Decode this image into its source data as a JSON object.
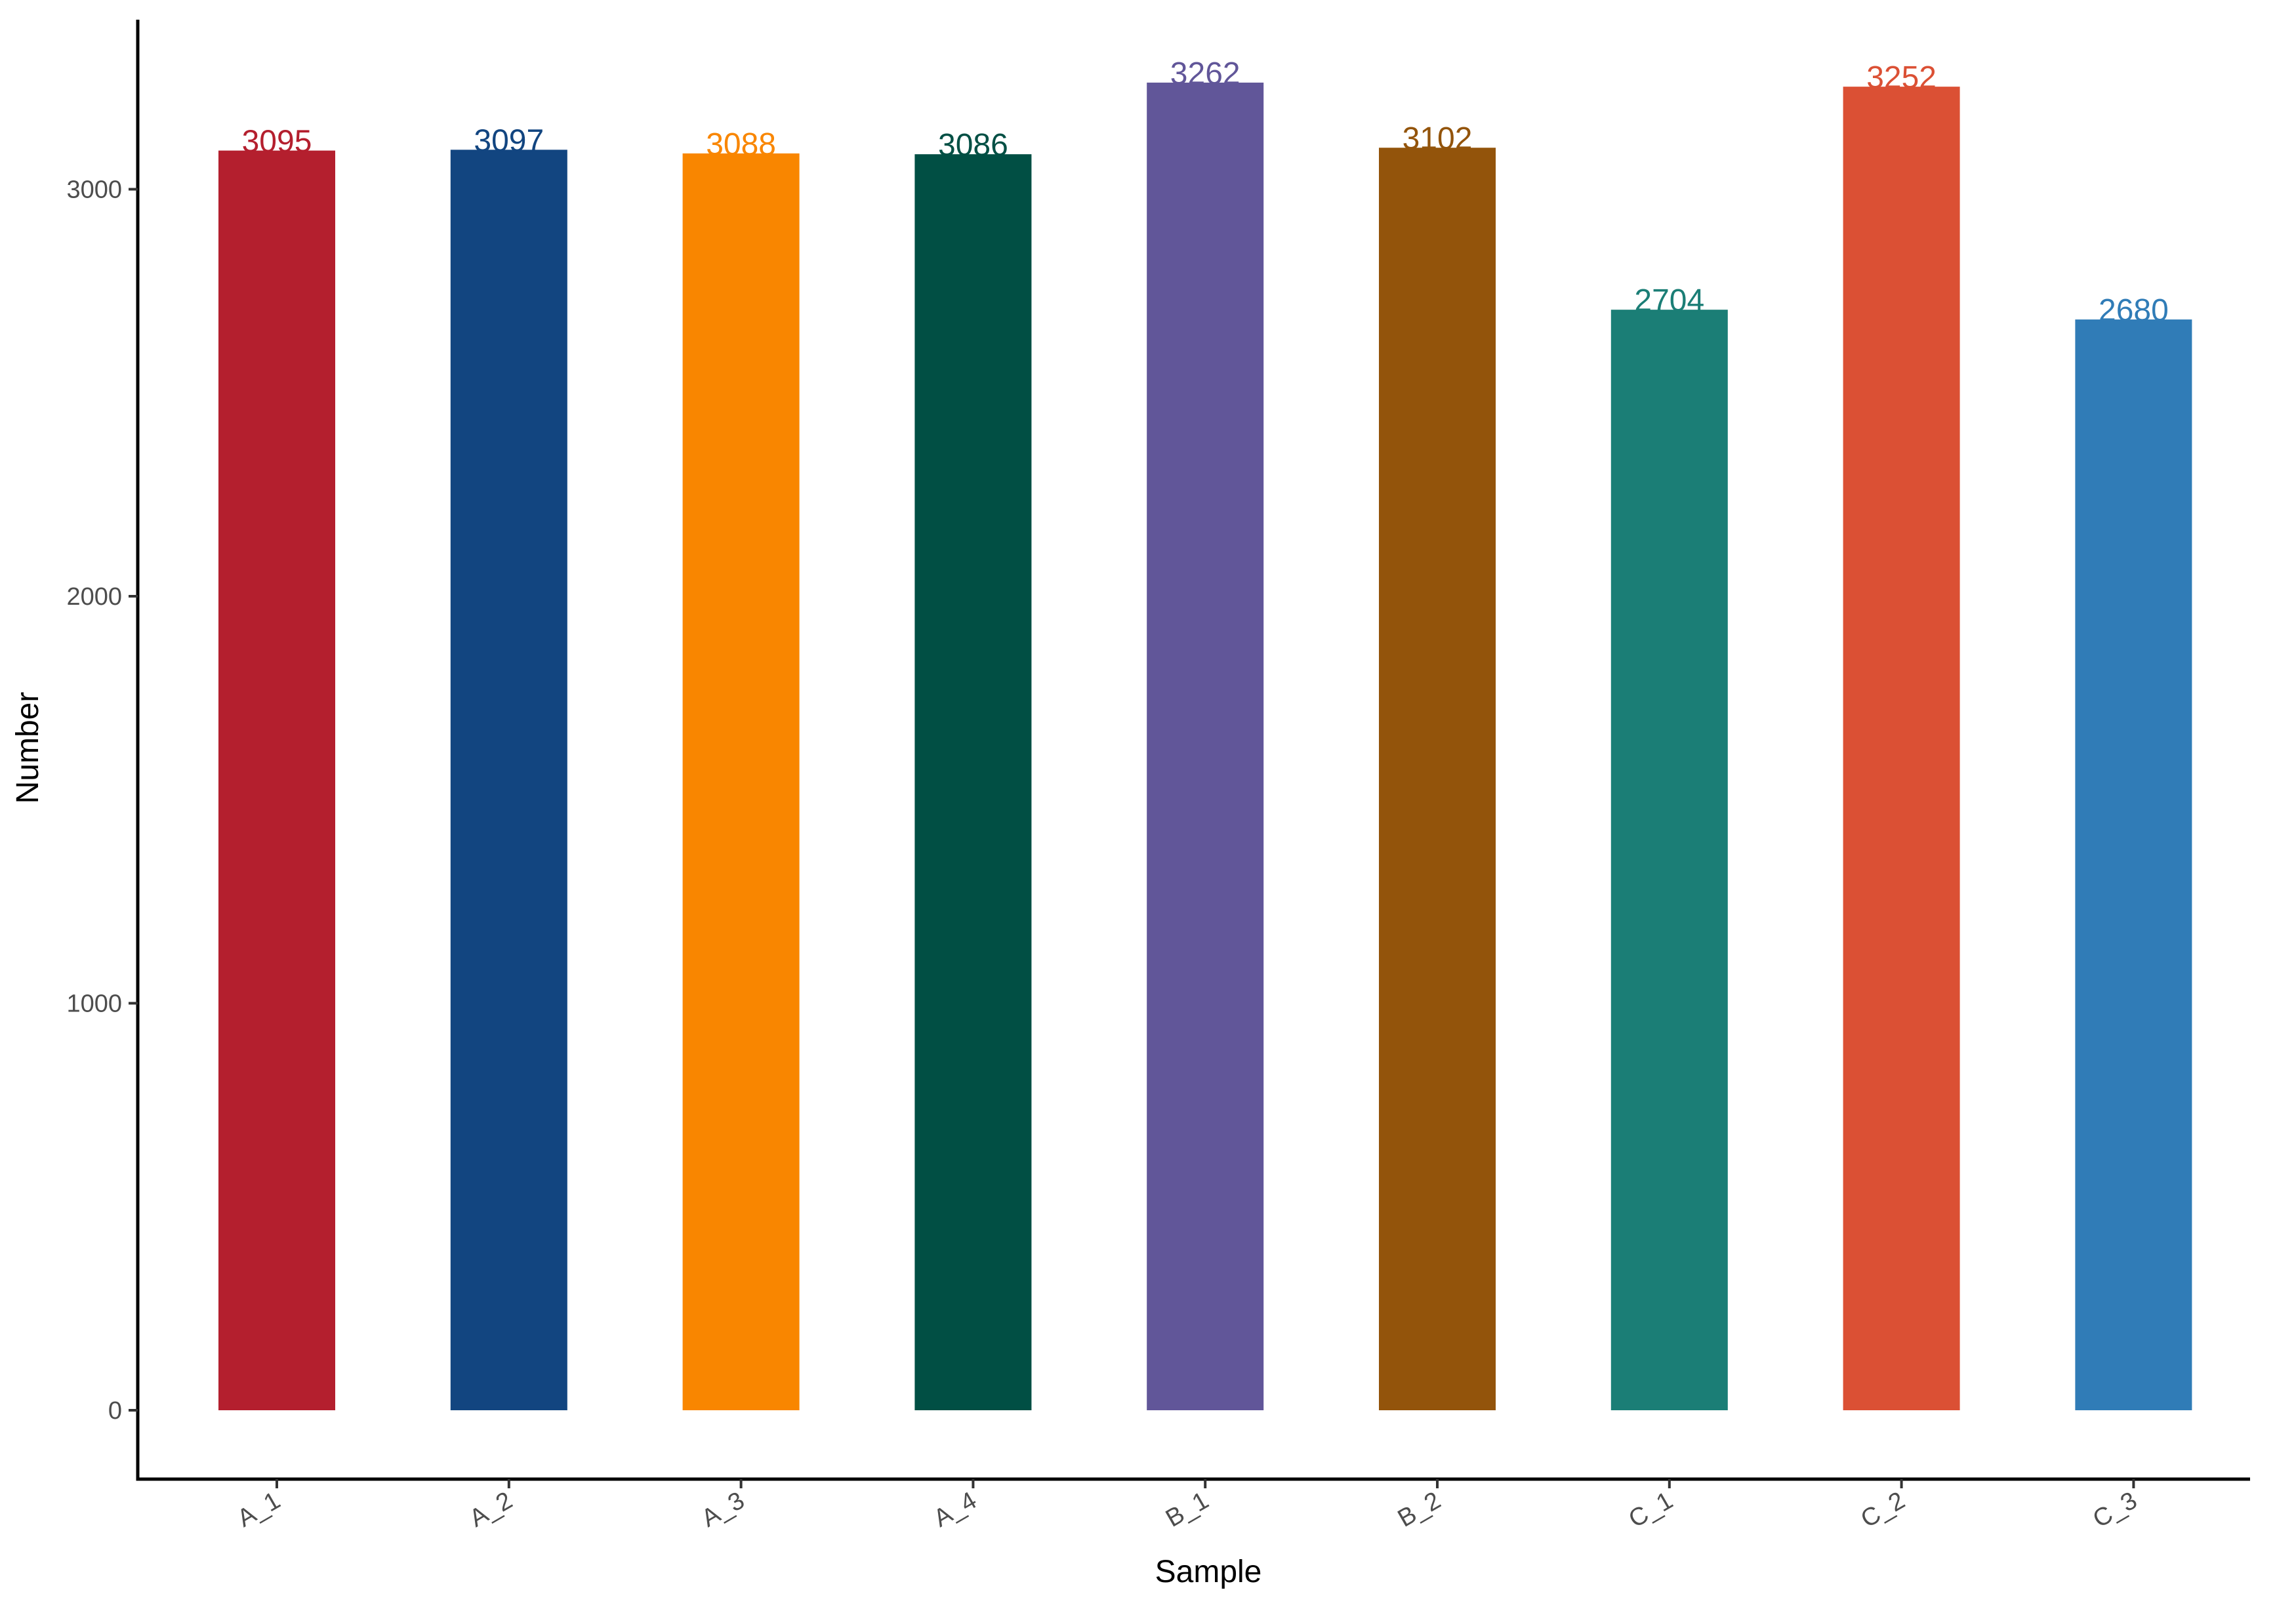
{
  "chart_data": {
    "type": "bar",
    "title": "",
    "xlabel": "Sample",
    "ylabel": "Number",
    "categories": [
      "A_1",
      "A_2",
      "A_3",
      "A_4",
      "B_1",
      "B_2",
      "C_1",
      "C_2",
      "C_3"
    ],
    "values": [
      3095,
      3097,
      3088,
      3086,
      3262,
      3102,
      2704,
      3252,
      2680
    ],
    "colors": [
      "#B41F2E",
      "#124580",
      "#F98600",
      "#014F44",
      "#615699",
      "#93540B",
      "#1B7E76",
      "#DB5034",
      "#307CB7"
    ],
    "yticks": [
      0,
      1000,
      2000,
      3000
    ],
    "ylim": [
      -162,
      3424
    ],
    "grid": false,
    "legend": "none",
    "value_labels": true
  }
}
